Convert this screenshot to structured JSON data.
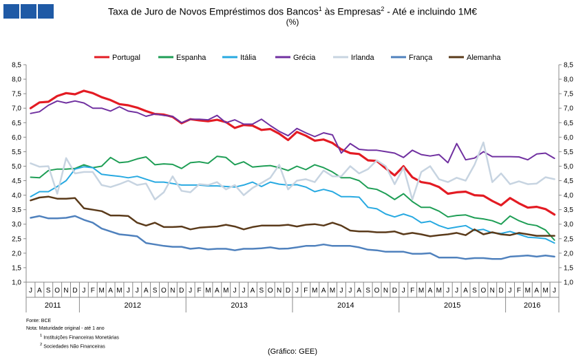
{
  "title": "Taxa de Juro de Novos Empréstimos  dos Bancos",
  "title_mid": " às Empresas",
  "title_end": " - Até e incluindo  1M€",
  "title_sup1": "1",
  "title_sup2": "2",
  "subtitle": "(%)",
  "chart_data": {
    "type": "line",
    "ylim": [
      1.0,
      8.5
    ],
    "yticks": [
      "1,0",
      "1,5",
      "2,0",
      "2,5",
      "3,0",
      "3,5",
      "4,0",
      "4,5",
      "5,0",
      "5,5",
      "6,0",
      "6,5",
      "7,0",
      "7,5",
      "8,0",
      "8,5"
    ],
    "months": [
      "J",
      "A",
      "S",
      "O",
      "N",
      "D",
      "J",
      "F",
      "M",
      "A",
      "M",
      "J",
      "J",
      "A",
      "S",
      "O",
      "N",
      "D",
      "J",
      "F",
      "M",
      "A",
      "M",
      "J",
      "J",
      "A",
      "S",
      "O",
      "N",
      "D",
      "J",
      "F",
      "M",
      "A",
      "M",
      "J",
      "J",
      "A",
      "S",
      "O",
      "N",
      "D",
      "J",
      "F",
      "M",
      "A",
      "M",
      "J",
      "J",
      "A",
      "S",
      "O",
      "N",
      "D",
      "J",
      "F",
      "M",
      "A",
      "M",
      "J"
    ],
    "years": [
      {
        "label": "2011",
        "start": 0,
        "end": 5
      },
      {
        "label": "2012",
        "start": 6,
        "end": 17
      },
      {
        "label": "2013",
        "start": 18,
        "end": 29
      },
      {
        "label": "2014",
        "start": 30,
        "end": 41
      },
      {
        "label": "2015",
        "start": 42,
        "end": 53
      },
      {
        "label": "2016",
        "start": 54,
        "end": 59
      }
    ],
    "series": [
      {
        "name": "Portugal",
        "color": "#e31b23",
        "width": 3.2,
        "values": [
          7.0,
          7.2,
          7.22,
          7.42,
          7.52,
          7.48,
          7.6,
          7.52,
          7.38,
          7.28,
          7.14,
          7.1,
          7.02,
          6.9,
          6.8,
          6.78,
          6.7,
          6.48,
          6.62,
          6.58,
          6.55,
          6.6,
          6.52,
          6.32,
          6.42,
          6.4,
          6.25,
          6.28,
          6.12,
          5.9,
          6.18,
          6.05,
          5.88,
          5.92,
          5.8,
          5.58,
          5.45,
          5.42,
          5.2,
          5.18,
          4.92,
          4.68,
          5.0,
          4.62,
          4.45,
          4.4,
          4.28,
          4.05,
          4.1,
          4.12,
          4.0,
          3.98,
          3.8,
          3.65,
          3.9,
          3.72,
          3.57,
          3.6,
          3.52,
          3.33
        ]
      },
      {
        "name": "Espanha",
        "color": "#1e9e55",
        "width": 2,
        "values": [
          4.62,
          4.6,
          4.85,
          4.9,
          4.9,
          4.92,
          5.05,
          4.95,
          5.0,
          5.3,
          5.12,
          5.15,
          5.25,
          5.32,
          5.05,
          5.08,
          5.06,
          4.92,
          5.12,
          5.15,
          5.1,
          5.34,
          5.3,
          5.05,
          5.15,
          4.97,
          5.0,
          5.02,
          4.95,
          4.85,
          5.0,
          4.88,
          5.05,
          4.95,
          4.8,
          4.6,
          4.6,
          4.5,
          4.25,
          4.2,
          4.05,
          3.85,
          4.05,
          3.78,
          3.58,
          3.58,
          3.45,
          3.25,
          3.3,
          3.32,
          3.22,
          3.18,
          3.12,
          3.0,
          3.28,
          3.12,
          3.0,
          2.95,
          2.8,
          2.45
        ]
      },
      {
        "name": "Itália",
        "color": "#27a9e1",
        "width": 2,
        "values": [
          3.95,
          4.12,
          4.12,
          4.3,
          4.5,
          4.9,
          4.98,
          4.95,
          4.72,
          4.68,
          4.65,
          4.6,
          4.65,
          4.55,
          4.45,
          4.45,
          4.4,
          4.35,
          4.35,
          4.35,
          4.32,
          4.32,
          4.3,
          4.28,
          4.35,
          4.45,
          4.3,
          4.45,
          4.38,
          4.35,
          4.36,
          4.28,
          4.12,
          4.2,
          4.12,
          3.95,
          3.95,
          3.93,
          3.58,
          3.53,
          3.35,
          3.25,
          3.35,
          3.25,
          3.05,
          3.1,
          2.95,
          2.85,
          2.9,
          2.95,
          2.78,
          2.82,
          2.7,
          2.68,
          2.75,
          2.65,
          2.55,
          2.53,
          2.5,
          2.35
        ]
      },
      {
        "name": "Grécia",
        "color": "#7030a0",
        "width": 2,
        "values": [
          6.82,
          6.88,
          7.1,
          7.25,
          7.18,
          7.25,
          7.18,
          7.0,
          7.0,
          6.9,
          7.05,
          6.9,
          6.85,
          6.72,
          6.8,
          6.75,
          6.72,
          6.5,
          6.62,
          6.62,
          6.6,
          6.75,
          6.5,
          6.6,
          6.45,
          6.45,
          6.62,
          6.4,
          6.2,
          6.05,
          6.3,
          6.15,
          6.02,
          6.15,
          6.08,
          5.45,
          5.78,
          5.58,
          5.55,
          5.55,
          5.5,
          5.45,
          5.3,
          5.55,
          5.4,
          5.35,
          5.4,
          5.12,
          5.78,
          5.22,
          5.28,
          5.5,
          5.33,
          5.33,
          5.33,
          5.32,
          5.22,
          5.42,
          5.45,
          5.27
        ]
      },
      {
        "name": "Irlanda",
        "color": "#c7d4e1",
        "width": 2.5,
        "values": [
          5.1,
          4.98,
          5.0,
          4.05,
          5.28,
          4.75,
          4.8,
          4.8,
          4.35,
          4.28,
          4.38,
          4.5,
          4.35,
          4.4,
          3.85,
          4.1,
          4.65,
          4.15,
          4.1,
          4.38,
          4.35,
          4.45,
          4.2,
          4.35,
          4.0,
          4.25,
          4.42,
          4.6,
          5.05,
          4.2,
          4.5,
          4.55,
          4.45,
          4.85,
          4.65,
          4.65,
          5.0,
          4.75,
          4.9,
          5.2,
          5.0,
          4.38,
          4.95,
          3.85,
          4.8,
          5.0,
          4.55,
          4.45,
          4.6,
          4.5,
          5.05,
          5.82,
          4.45,
          4.75,
          4.38,
          4.48,
          4.38,
          4.4,
          4.62,
          4.55
        ]
      },
      {
        "name": "França",
        "color": "#4f81bd",
        "width": 2.5,
        "values": [
          3.22,
          3.28,
          3.2,
          3.2,
          3.22,
          3.28,
          3.15,
          3.05,
          2.85,
          2.75,
          2.65,
          2.62,
          2.58,
          2.35,
          2.3,
          2.25,
          2.22,
          2.22,
          2.15,
          2.18,
          2.13,
          2.15,
          2.15,
          2.1,
          2.15,
          2.15,
          2.17,
          2.2,
          2.15,
          2.16,
          2.2,
          2.25,
          2.25,
          2.3,
          2.25,
          2.25,
          2.25,
          2.2,
          2.12,
          2.1,
          2.05,
          2.05,
          2.05,
          1.98,
          1.98,
          2.0,
          1.85,
          1.85,
          1.85,
          1.8,
          1.83,
          1.83,
          1.8,
          1.8,
          1.88,
          1.9,
          1.92,
          1.88,
          1.92,
          1.88
        ]
      },
      {
        "name": "Alemanha",
        "color": "#5a3a1a",
        "width": 2.5,
        "values": [
          3.82,
          3.92,
          3.95,
          3.88,
          3.88,
          3.9,
          3.55,
          3.5,
          3.45,
          3.3,
          3.3,
          3.28,
          3.05,
          2.95,
          3.05,
          2.9,
          2.9,
          2.92,
          2.82,
          2.88,
          2.9,
          2.92,
          2.98,
          2.92,
          2.82,
          2.9,
          2.95,
          2.95,
          2.95,
          2.98,
          2.92,
          2.98,
          3.0,
          2.95,
          3.05,
          2.95,
          2.78,
          2.75,
          2.75,
          2.72,
          2.72,
          2.75,
          2.65,
          2.7,
          2.65,
          2.58,
          2.62,
          2.65,
          2.7,
          2.62,
          2.82,
          2.65,
          2.72,
          2.65,
          2.62,
          2.7,
          2.65,
          2.6,
          2.6,
          2.6
        ]
      }
    ]
  },
  "notes": {
    "source": "Fonte: BCE",
    "note": "Nota: Maturidade original - até 1 ano",
    "foot1": "Instituições Financeiras Monetárias",
    "foot2": "Sociedades Não Financeiras",
    "foot1_sup": "1",
    "foot2_sup": "2"
  },
  "credit": "(Gráfico: GEE)",
  "brand_color": "#1f5aa6"
}
